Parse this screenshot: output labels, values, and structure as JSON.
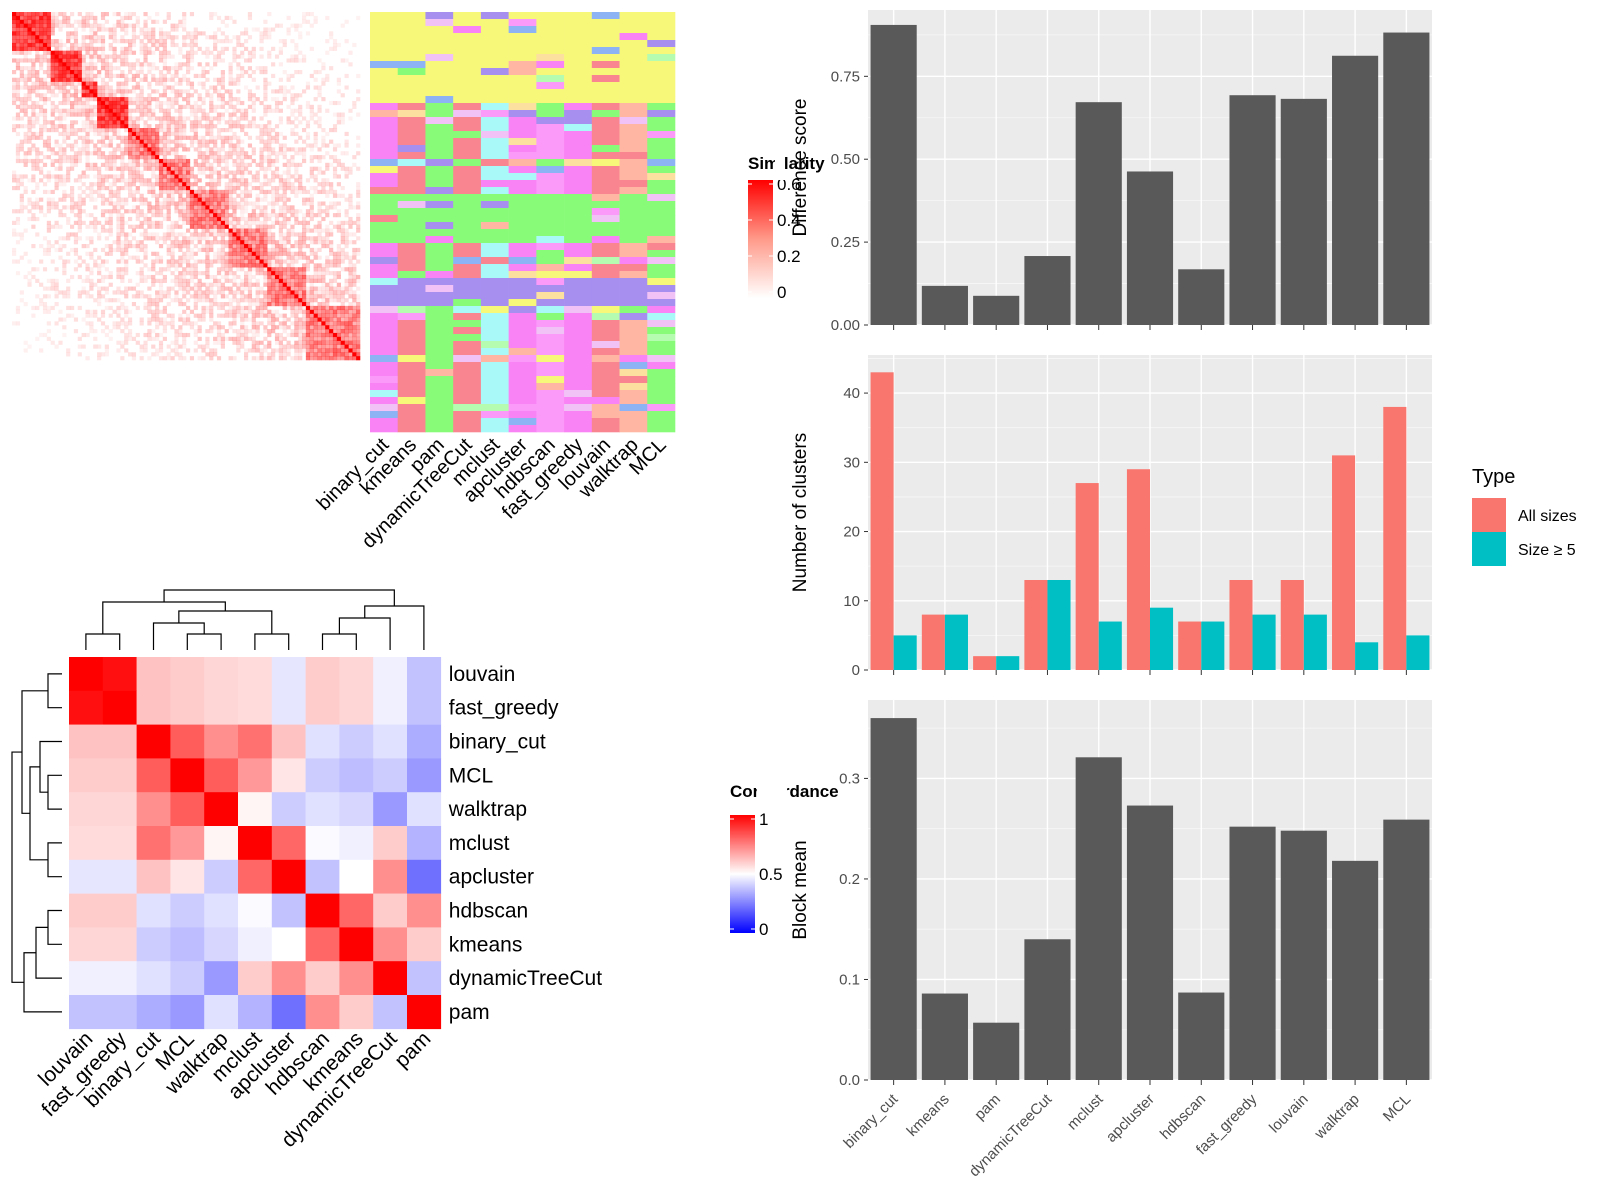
{
  "methods_sim": [
    "binary_cut",
    "kmeans",
    "pam",
    "dynamicTreeCut",
    "mclust",
    "apcluster",
    "hdbscan",
    "fast_greedy",
    "louvain",
    "walktrap",
    "MCL"
  ],
  "similarity_legend": {
    "title": "Similarity",
    "ticks": [
      "0.6",
      "0.4",
      "0.2",
      "0"
    ],
    "values": [
      0.6,
      0.4,
      0.2,
      0
    ]
  },
  "concordance_legend": {
    "title": "Concordance",
    "ticks": [
      "1",
      "0.5",
      "0"
    ],
    "values": [
      1,
      0.5,
      0
    ]
  },
  "concordance_order": [
    "louvain",
    "fast_greedy",
    "binary_cut",
    "MCL",
    "walktrap",
    "mclust",
    "apcluster",
    "hdbscan",
    "kmeans",
    "dynamicTreeCut",
    "pam"
  ],
  "concordance_matrix": [
    [
      1.0,
      0.97,
      0.62,
      0.6,
      0.58,
      0.57,
      0.45,
      0.6,
      0.58,
      0.47,
      0.38
    ],
    [
      0.97,
      1.0,
      0.62,
      0.6,
      0.58,
      0.57,
      0.45,
      0.6,
      0.58,
      0.47,
      0.38
    ],
    [
      0.62,
      0.62,
      1.0,
      0.82,
      0.72,
      0.78,
      0.62,
      0.44,
      0.4,
      0.44,
      0.34
    ],
    [
      0.6,
      0.6,
      0.82,
      1.0,
      0.82,
      0.7,
      0.55,
      0.4,
      0.37,
      0.4,
      0.3
    ],
    [
      0.58,
      0.58,
      0.72,
      0.82,
      1.0,
      0.52,
      0.4,
      0.44,
      0.42,
      0.3,
      0.44
    ],
    [
      0.57,
      0.57,
      0.78,
      0.7,
      0.52,
      1.0,
      0.8,
      0.49,
      0.47,
      0.6,
      0.35
    ],
    [
      0.45,
      0.45,
      0.62,
      0.55,
      0.4,
      0.8,
      1.0,
      0.38,
      0.5,
      0.72,
      0.22
    ],
    [
      0.6,
      0.6,
      0.44,
      0.4,
      0.44,
      0.49,
      0.38,
      1.0,
      0.8,
      0.6,
      0.72
    ],
    [
      0.58,
      0.58,
      0.4,
      0.37,
      0.42,
      0.47,
      0.5,
      0.8,
      1.0,
      0.72,
      0.6
    ],
    [
      0.47,
      0.47,
      0.44,
      0.4,
      0.3,
      0.6,
      0.72,
      0.6,
      0.72,
      1.0,
      0.38
    ],
    [
      0.38,
      0.38,
      0.34,
      0.3,
      0.44,
      0.35,
      0.22,
      0.72,
      0.6,
      0.38,
      1.0
    ]
  ],
  "chart_data": [
    {
      "type": "bar",
      "categories": [
        "binary_cut",
        "kmeans",
        "pam",
        "dynamicTreeCut",
        "mclust",
        "apcluster",
        "hdbscan",
        "fast_greedy",
        "louvain",
        "walktrap",
        "MCL"
      ],
      "values": [
        0.905,
        0.118,
        0.088,
        0.208,
        0.672,
        0.463,
        0.168,
        0.693,
        0.682,
        0.812,
        0.882
      ],
      "title": "",
      "xlabel": "",
      "ylabel": "Difference score",
      "ylim": [
        0,
        0.95
      ],
      "yticks": [
        0.0,
        0.25,
        0.5,
        0.75
      ],
      "ytick_labels": [
        "0.00",
        "0.25",
        "0.50",
        "0.75"
      ],
      "grid": true
    },
    {
      "type": "bar",
      "categories": [
        "binary_cut",
        "kmeans",
        "pam",
        "dynamicTreeCut",
        "mclust",
        "apcluster",
        "hdbscan",
        "fast_greedy",
        "louvain",
        "walktrap",
        "MCL"
      ],
      "series": [
        {
          "name": "All sizes",
          "color": "#F8766D",
          "values": [
            43,
            8,
            2,
            13,
            27,
            29,
            7,
            13,
            13,
            31,
            38
          ]
        },
        {
          "name": "Size ≥ 5",
          "color": "#00BFC4",
          "values": [
            5,
            8,
            2,
            13,
            7,
            9,
            7,
            8,
            8,
            4,
            5
          ]
        }
      ],
      "title": "",
      "xlabel": "",
      "ylabel": "Number of clusters",
      "ylim": [
        0,
        45.5
      ],
      "yticks": [
        0,
        10,
        20,
        30,
        40
      ],
      "ytick_labels": [
        "0",
        "10",
        "20",
        "30",
        "40"
      ],
      "legend": {
        "title": "Type",
        "position": "right"
      },
      "grid": true
    },
    {
      "type": "bar",
      "categories": [
        "binary_cut",
        "kmeans",
        "pam",
        "dynamicTreeCut",
        "mclust",
        "apcluster",
        "hdbscan",
        "fast_greedy",
        "louvain",
        "walktrap",
        "MCL"
      ],
      "values": [
        0.36,
        0.086,
        0.057,
        0.14,
        0.321,
        0.273,
        0.087,
        0.252,
        0.248,
        0.218,
        0.259
      ],
      "title": "",
      "xlabel": "",
      "ylabel": "Block mean",
      "ylim": [
        0,
        0.378
      ],
      "yticks": [
        0.0,
        0.1,
        0.2,
        0.3
      ],
      "ytick_labels": [
        "0.0",
        "0.1",
        "0.2",
        "0.3"
      ],
      "grid": true
    }
  ]
}
